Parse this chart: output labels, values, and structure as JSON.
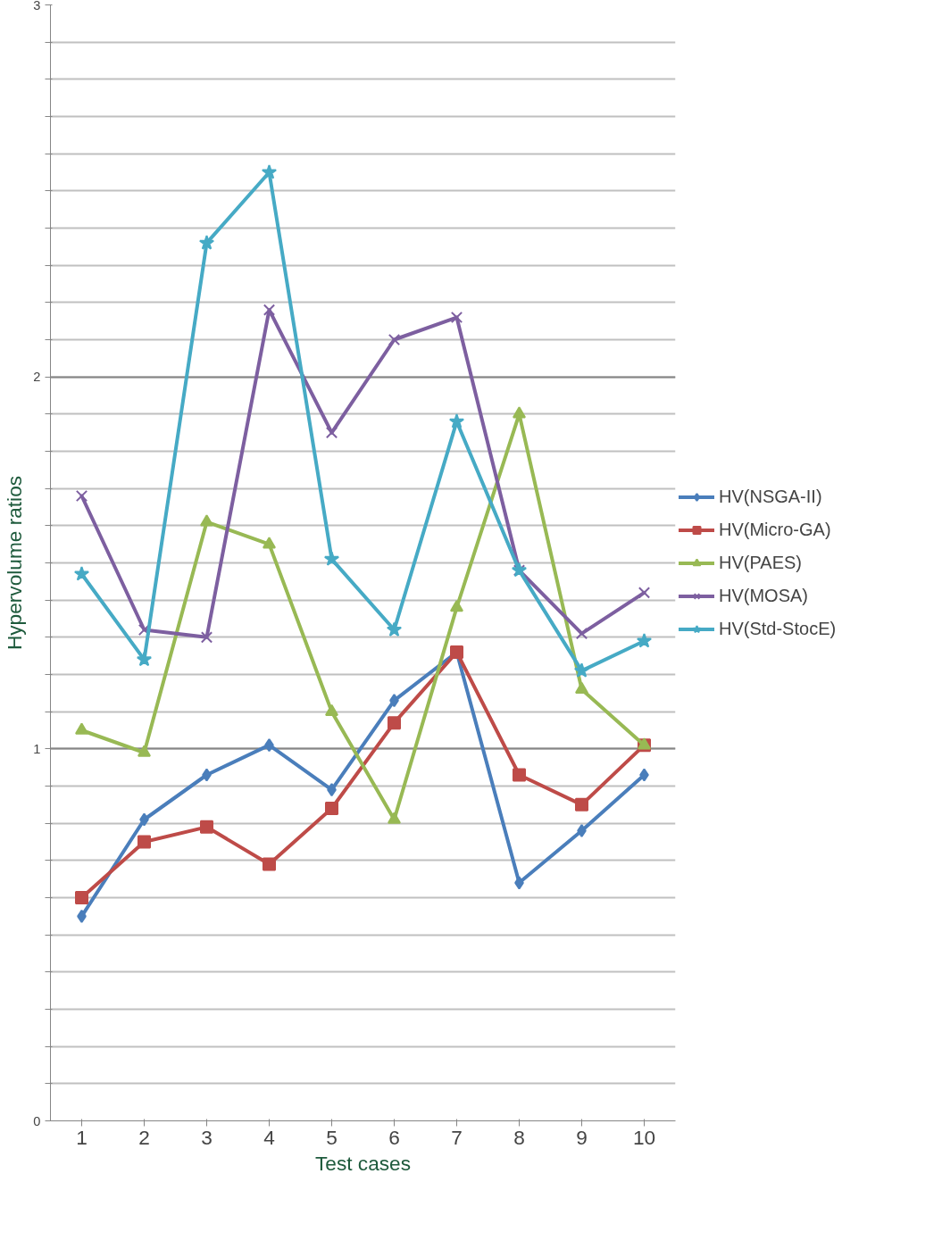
{
  "chart_data": {
    "type": "line",
    "xlabel": "Test cases",
    "ylabel": "Hypervolume ratios",
    "categories": [
      "1",
      "2",
      "3",
      "4",
      "5",
      "6",
      "7",
      "8",
      "9",
      "10"
    ],
    "ylim": [
      0,
      3
    ],
    "yticks": [
      0,
      {
        "value": 0.1,
        "label": null
      },
      {
        "value": 0.2,
        "label": null
      },
      {
        "value": 0.3,
        "label": null
      },
      {
        "value": 0.4,
        "label": null
      },
      {
        "value": 0.5,
        "label": null
      },
      {
        "value": 0.6,
        "label": null
      },
      {
        "value": 0.7,
        "label": null
      },
      {
        "value": 0.8,
        "label": null
      },
      {
        "value": 0.9,
        "label": null
      },
      1,
      {
        "value": 1.1,
        "label": null
      },
      {
        "value": 1.2,
        "label": null
      },
      {
        "value": 1.3,
        "label": null
      },
      {
        "value": 1.4,
        "label": null
      },
      {
        "value": 1.5,
        "label": null
      },
      {
        "value": 1.6,
        "label": null
      },
      {
        "value": 1.7,
        "label": null
      },
      {
        "value": 1.8,
        "label": null
      },
      {
        "value": 1.9,
        "label": null
      },
      2,
      {
        "value": 2.1,
        "label": null
      },
      {
        "value": 2.2,
        "label": null
      },
      {
        "value": 2.3,
        "label": null
      },
      {
        "value": 2.4,
        "label": null
      },
      {
        "value": 2.5,
        "label": null
      },
      {
        "value": 2.6,
        "label": null
      },
      {
        "value": 2.7,
        "label": null
      },
      {
        "value": 2.8,
        "label": null
      },
      {
        "value": 2.9,
        "label": null
      },
      3
    ],
    "grid": "y",
    "legend": "right",
    "line_style": "solid",
    "series": [
      {
        "name": "HV(NSGA-II)",
        "color": "#4a7ebb",
        "marker": "diamond",
        "values": [
          0.55,
          0.81,
          0.93,
          1.01,
          0.89,
          1.13,
          1.26,
          0.64,
          0.78,
          0.93
        ]
      },
      {
        "name": "HV(Micro-GA)",
        "color": "#be4b48",
        "marker": "square",
        "values": [
          0.6,
          0.75,
          0.79,
          0.69,
          0.84,
          1.07,
          1.26,
          0.93,
          0.85,
          1.01
        ]
      },
      {
        "name": "HV(PAES)",
        "color": "#98b954",
        "marker": "triangle",
        "values": [
          1.05,
          0.99,
          1.61,
          1.55,
          1.1,
          0.81,
          1.38,
          1.9,
          1.16,
          1.01
        ]
      },
      {
        "name": "HV(MOSA)",
        "color": "#7d5fa0",
        "marker": "cross",
        "values": [
          1.68,
          1.32,
          1.3,
          2.18,
          1.85,
          2.1,
          2.16,
          1.48,
          1.31,
          1.42
        ]
      },
      {
        "name": "HV(Std-StocE)",
        "color": "#46aac5",
        "marker": "star",
        "values": [
          1.47,
          1.24,
          2.36,
          2.55,
          1.51,
          1.32,
          1.88,
          1.48,
          1.21,
          1.29
        ]
      }
    ]
  }
}
